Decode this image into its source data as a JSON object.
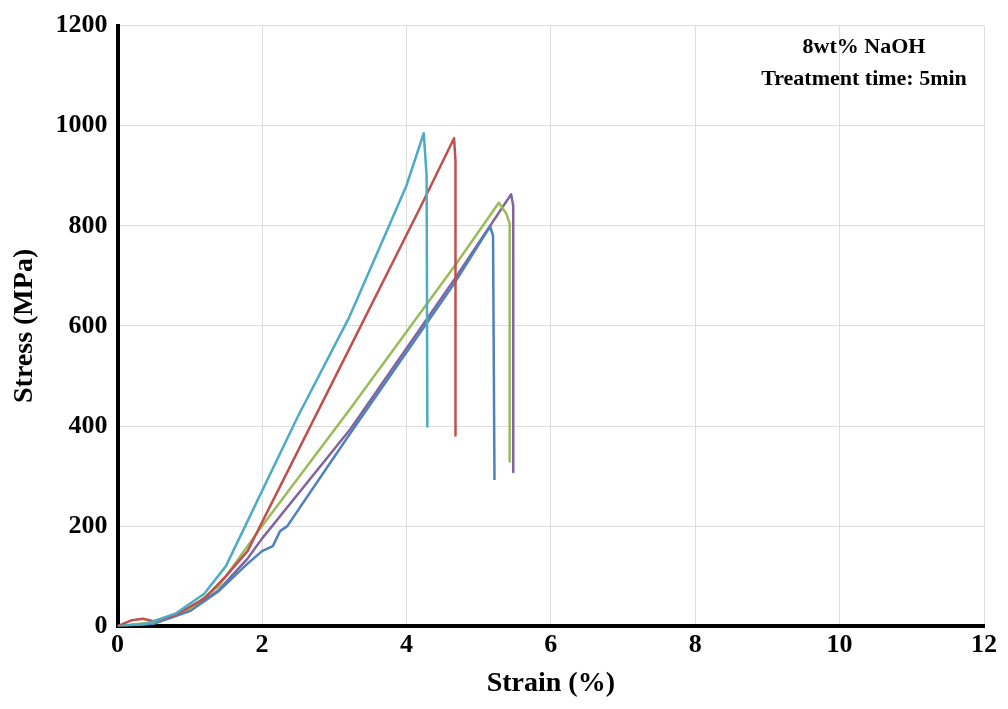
{
  "chart_data": {
    "type": "line",
    "xlabel": "Strain (%)",
    "ylabel": "Stress (MPa)",
    "annotations": [
      "8wt% NaOH",
      "Treatment time: 5min"
    ],
    "xlim": [
      0,
      12
    ],
    "xticks": [
      0,
      2,
      4,
      6,
      8,
      10,
      12
    ],
    "ylim": [
      0,
      1200
    ],
    "yticks": [
      0,
      200,
      400,
      600,
      800,
      1000,
      1200
    ],
    "grid": true,
    "legend": false,
    "marker": "none",
    "line_style": "solid",
    "series": [
      {
        "color": "#4bacc6",
        "x": [
          0,
          0.4,
          0.8,
          1.2,
          1.5,
          1.8,
          2.5,
          3.2,
          3.7,
          4.0,
          4.24,
          4.28,
          4.29
        ],
        "values": [
          0,
          5,
          25,
          65,
          120,
          210,
          420,
          615,
          780,
          880,
          985,
          900,
          397
        ]
      },
      {
        "color": "#c0504d",
        "x": [
          0,
          0.2,
          0.35,
          0.5,
          0.8,
          1.2,
          1.5,
          1.8,
          2.2,
          3.23,
          4.19,
          4.66,
          4.68,
          4.68
        ],
        "values": [
          0,
          12,
          15,
          10,
          22,
          55,
          100,
          150,
          265,
          560,
          836,
          975,
          930,
          381
        ]
      },
      {
        "color": "#9bbb59",
        "x": [
          0,
          0.5,
          1.0,
          1.4,
          1.7,
          2.0,
          3.23,
          4.66,
          5.28,
          5.38,
          5.43,
          5.43
        ],
        "values": [
          0,
          8,
          35,
          80,
          140,
          200,
          436,
          718,
          846,
          825,
          805,
          329
        ]
      },
      {
        "color": "#4f81bd",
        "x": [
          0,
          0.5,
          1.0,
          1.4,
          1.8,
          2.0,
          2.15,
          2.25,
          2.35,
          3.23,
          4.66,
          5.16,
          5.2,
          5.22
        ],
        "values": [
          0,
          5,
          30,
          70,
          125,
          150,
          160,
          190,
          200,
          387,
          684,
          799,
          780,
          292
        ]
      },
      {
        "color": "#8064a2",
        "x": [
          0,
          0.5,
          1.0,
          1.4,
          1.8,
          2.0,
          3.23,
          4.66,
          5.45,
          5.48,
          5.48
        ],
        "values": [
          0,
          6,
          32,
          72,
          135,
          175,
          395,
          692,
          863,
          840,
          308
        ]
      }
    ]
  }
}
